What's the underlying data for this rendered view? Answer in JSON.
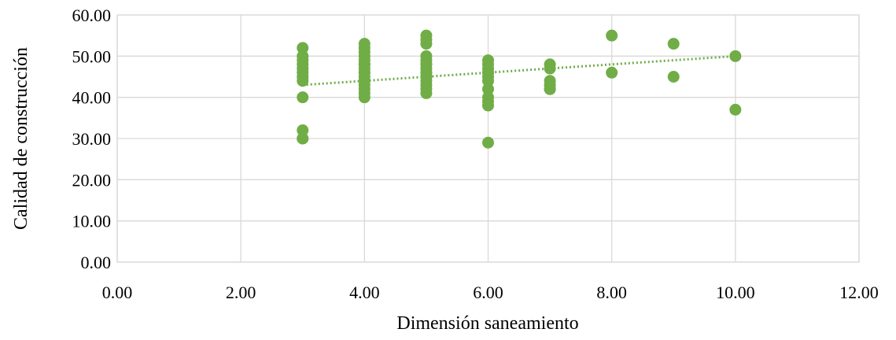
{
  "chart_data": {
    "type": "scatter",
    "title": "",
    "xlabel": "Dimensión saneamiento",
    "ylabel": "Calidad de construcción",
    "xlim": [
      0,
      12
    ],
    "ylim": [
      0,
      60
    ],
    "x_ticks": [
      "0.00",
      "2.00",
      "4.00",
      "6.00",
      "8.00",
      "10.00",
      "12.00"
    ],
    "y_ticks": [
      "0.00",
      "10.00",
      "20.00",
      "30.00",
      "40.00",
      "50.00",
      "60.00"
    ],
    "grid": true,
    "legend": "none",
    "series": [
      {
        "color": "#70ad47",
        "x": [
          3,
          3,
          3,
          3,
          3,
          3,
          3,
          3,
          3,
          3,
          3,
          3,
          4,
          4,
          4,
          4,
          4,
          4,
          4,
          4,
          4,
          4,
          4,
          4,
          4,
          4,
          4,
          4,
          5,
          5,
          5,
          5,
          5,
          5,
          5,
          5,
          5,
          5,
          5,
          5,
          5,
          5,
          5,
          6,
          6,
          6,
          6,
          6,
          6,
          6,
          6,
          6,
          6,
          6,
          6,
          7,
          7,
          7,
          7,
          7,
          7,
          8,
          8,
          9,
          9,
          10,
          10
        ],
        "y": [
          52,
          50,
          49,
          48,
          47,
          46,
          45,
          44,
          40,
          32,
          30,
          30,
          53,
          52,
          51,
          50,
          49,
          48,
          47,
          46,
          45,
          44,
          43,
          42,
          41,
          40,
          48,
          46,
          55,
          54,
          53,
          50,
          49,
          48,
          47,
          46,
          45,
          44,
          43,
          42,
          41,
          48,
          46,
          49,
          48,
          47,
          46,
          45,
          44,
          42,
          40,
          39,
          38,
          29,
          46,
          48,
          47,
          44,
          43,
          42,
          42,
          55,
          46,
          53,
          45,
          50,
          37
        ]
      }
    ],
    "trendline": {
      "type": "linear",
      "style": "dotted",
      "color": "#70ad47",
      "x_range": [
        3,
        10
      ],
      "y_values": [
        43,
        50
      ]
    }
  }
}
